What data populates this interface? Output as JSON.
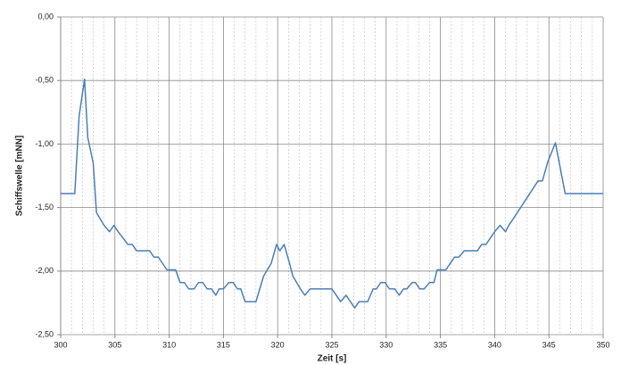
{
  "chart_data": {
    "type": "line",
    "xlabel": "Zeit [s]",
    "ylabel": "Schiffswelle [mNN]",
    "x": [
      300,
      301.3,
      301.7,
      302.2,
      302.5,
      303,
      303.3,
      304,
      304.5,
      304.9,
      305.3,
      306.2,
      306.6,
      307,
      308.2,
      308.6,
      309,
      309.8,
      310.6,
      311,
      311.4,
      311.8,
      312.3,
      312.7,
      313.1,
      313.5,
      313.9,
      314.3,
      314.6,
      315,
      315.5,
      315.9,
      316.3,
      316.6,
      317,
      318,
      318.7,
      319.4,
      319.9,
      320.2,
      320.6,
      321.1,
      321.4,
      322.1,
      322.5,
      323,
      325,
      325.4,
      325.8,
      326.3,
      326.7,
      327.1,
      327.5,
      328.3,
      328.8,
      329.1,
      329.5,
      329.9,
      330.3,
      330.8,
      331.2,
      331.6,
      331.9,
      332.4,
      332.7,
      333.1,
      333.5,
      334,
      334.4,
      334.7,
      335.5,
      335.9,
      336.3,
      336.7,
      337.2,
      338.4,
      338.8,
      339.2,
      340,
      340.5,
      341,
      341.3,
      341.7,
      344,
      344.4,
      344.9,
      345.6,
      346.5,
      350
    ],
    "series": [
      {
        "name": "Schiffswelle",
        "color": "#4a7ebb",
        "values": [
          -1.39,
          -1.39,
          -0.78,
          -0.49,
          -0.95,
          -1.15,
          -1.54,
          -1.64,
          -1.69,
          -1.64,
          -1.69,
          -1.79,
          -1.79,
          -1.84,
          -1.84,
          -1.89,
          -1.89,
          -1.99,
          -1.99,
          -2.09,
          -2.09,
          -2.14,
          -2.14,
          -2.09,
          -2.09,
          -2.14,
          -2.14,
          -2.19,
          -2.14,
          -2.14,
          -2.09,
          -2.09,
          -2.14,
          -2.14,
          -2.24,
          -2.24,
          -2.04,
          -1.94,
          -1.79,
          -1.84,
          -1.79,
          -1.94,
          -2.04,
          -2.14,
          -2.19,
          -2.14,
          -2.14,
          -2.19,
          -2.24,
          -2.19,
          -2.24,
          -2.29,
          -2.24,
          -2.24,
          -2.14,
          -2.14,
          -2.09,
          -2.09,
          -2.14,
          -2.14,
          -2.19,
          -2.14,
          -2.14,
          -2.09,
          -2.09,
          -2.14,
          -2.14,
          -2.09,
          -2.09,
          -1.99,
          -1.99,
          -1.94,
          -1.89,
          -1.89,
          -1.84,
          -1.84,
          -1.79,
          -1.79,
          -1.69,
          -1.64,
          -1.69,
          -1.64,
          -1.59,
          -1.29,
          -1.29,
          -1.14,
          -0.99,
          -1.39,
          -1.39
        ]
      }
    ],
    "xlim": [
      300,
      350
    ],
    "xticks": [
      300,
      305,
      310,
      315,
      320,
      325,
      330,
      335,
      340,
      345,
      350
    ],
    "ylim": [
      -2.5,
      0
    ],
    "yticks": [
      {
        "value": -2.5,
        "label": "-2,50"
      },
      {
        "value": -2,
        "label": "-2,00"
      },
      {
        "value": -1.5,
        "label": "-1,50"
      },
      {
        "value": -1,
        "label": "-1,00"
      },
      {
        "value": -0.5,
        "label": "-0,50"
      },
      {
        "value": 0,
        "label": "0,00"
      }
    ],
    "grid": true,
    "minor_xgrid": true
  }
}
